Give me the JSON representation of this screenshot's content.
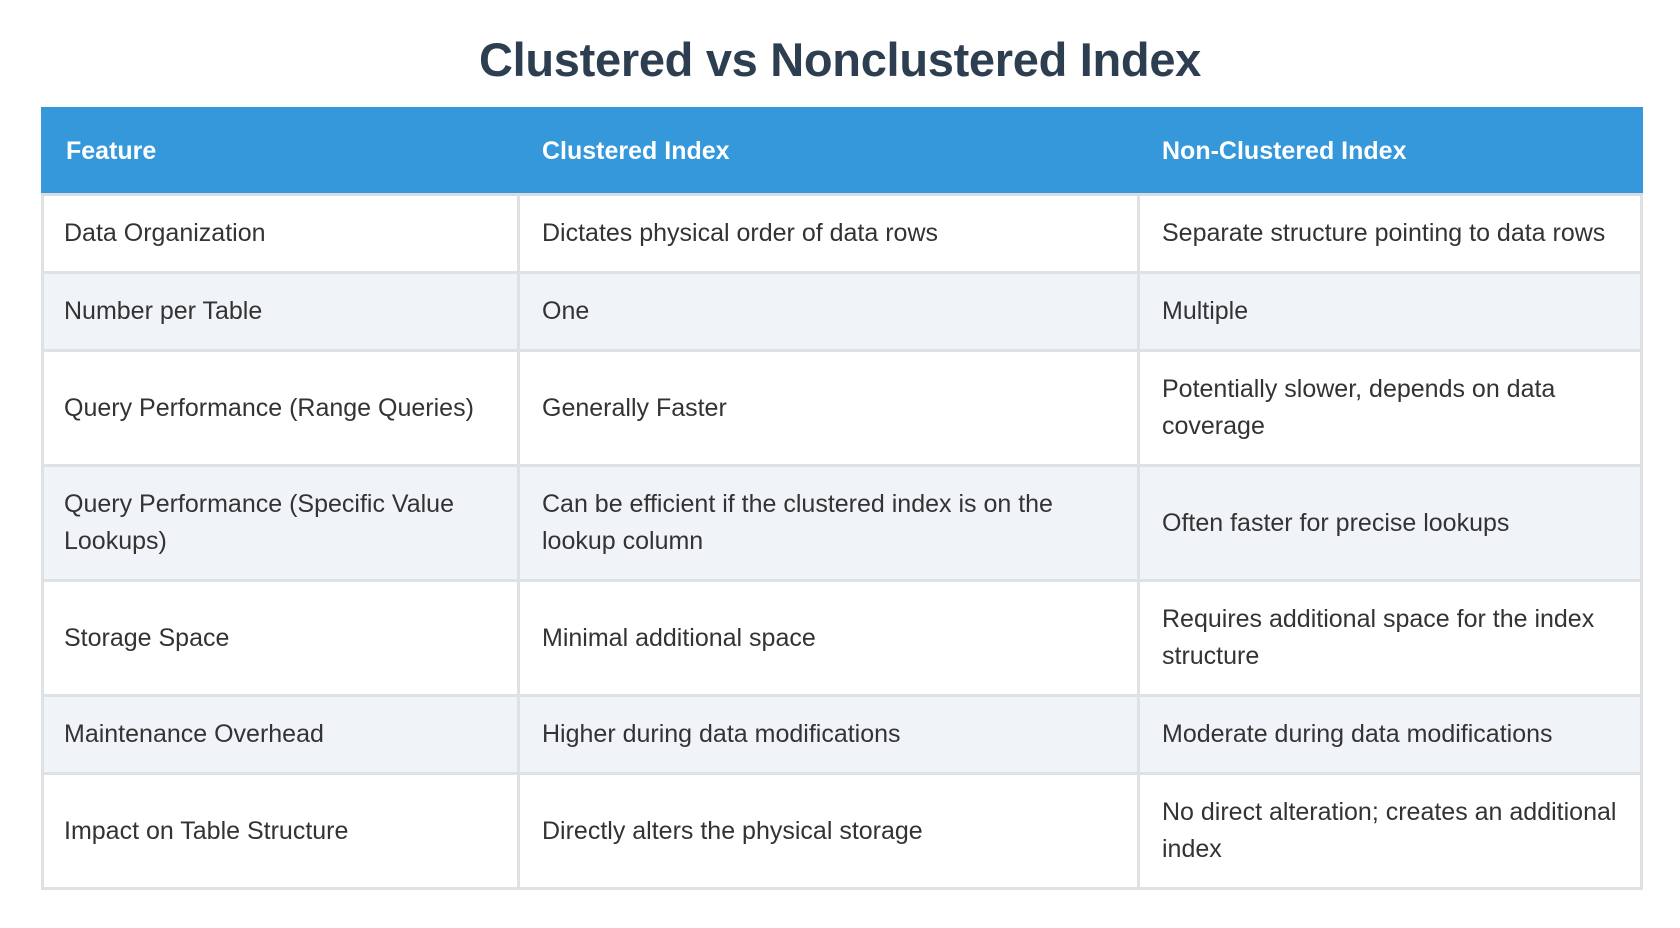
{
  "title": "Clustered vs Nonclustered Index",
  "table": {
    "headers": [
      "Feature",
      "Clustered Index",
      "Non-Clustered Index"
    ],
    "rows": [
      [
        "Data Organization",
        "Dictates physical order of data rows",
        "Separate structure pointing to data rows"
      ],
      [
        "Number per Table",
        "One",
        "Multiple"
      ],
      [
        "Query Performance (Range Queries)",
        "Generally Faster",
        "Potentially slower, depends on data coverage"
      ],
      [
        "Query Performance (Specific Value Lookups)",
        "Can be efficient if the clustered index is on the lookup column",
        "Often faster for precise lookups"
      ],
      [
        "Storage Space",
        "Minimal additional space",
        "Requires additional space for the index structure"
      ],
      [
        "Maintenance Overhead",
        "Higher during data modifications",
        "Moderate during data modifications"
      ],
      [
        "Impact on Table Structure",
        "Directly alters the physical storage",
        "No direct alteration; creates an additional index"
      ]
    ]
  },
  "colors": {
    "title": "#2c3e50",
    "header_bg": "#3498db",
    "header_text": "#ffffff",
    "row_alt_bg": "#f0f4f8",
    "border": "#dfe2e5"
  }
}
